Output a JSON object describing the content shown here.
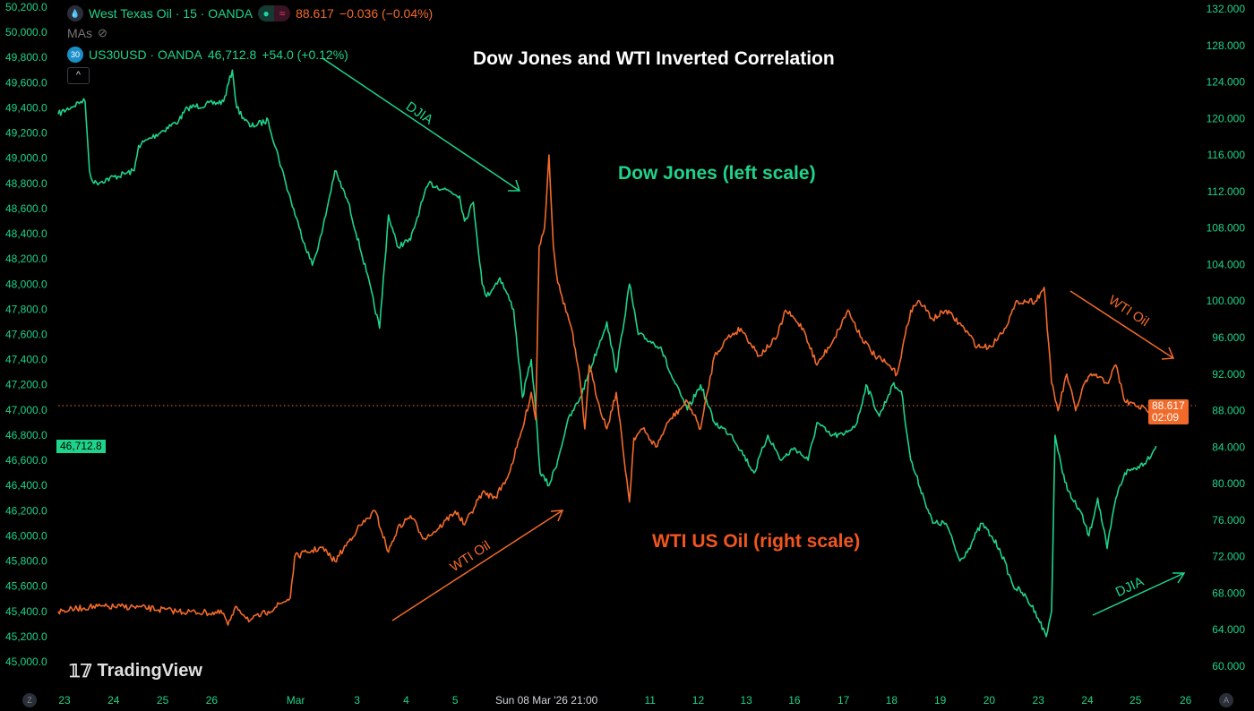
{
  "header": {
    "symbol1": "West Texas Oil · 15 · OANDA",
    "price1": "88.617",
    "change1": "−0.036 (−0.04%)",
    "mas_label": "MAs",
    "symbol2_badge": "30",
    "symbol2": "US30USD · OANDA",
    "price2": "46,712.8",
    "change2": "+54.0 (+0.12%)",
    "collapse": "^"
  },
  "colors": {
    "dow": "#1ed48a",
    "wti": "#f26a2a",
    "bg": "#000000"
  },
  "annotations": {
    "dow_label": "Dow Jones (left scale)",
    "wti_label": "WTI US Oil (right scale)",
    "arrow_djia_top": "DJIA",
    "arrow_wti_bottom": "WTI Oil",
    "arrow_wti_right": "WTI Oil",
    "arrow_djia_right": "DJIA"
  },
  "badges": {
    "wti_price": "88.617",
    "wti_timer": "02:09",
    "dow_price": "46,712.8"
  },
  "footer": {
    "logo": "TradingView",
    "z": "Z",
    "a": "A"
  },
  "chart_data": {
    "type": "line",
    "title": "Dow Jones and WTI Inverted Correlation",
    "x_unit": "trading days from Feb 23",
    "x_ticks": [
      {
        "x": 0,
        "label": "23"
      },
      {
        "x": 1,
        "label": "24"
      },
      {
        "x": 2,
        "label": "25"
      },
      {
        "x": 3,
        "label": "26"
      },
      {
        "x": 4.71,
        "label": "Mar"
      },
      {
        "x": 5.96,
        "label": "3"
      },
      {
        "x": 6.96,
        "label": "4"
      },
      {
        "x": 7.96,
        "label": "5"
      },
      {
        "x": 9.82,
        "label": "Sun 08 Mar '26  21:00",
        "crosshair": true
      },
      {
        "x": 11.93,
        "label": "11"
      },
      {
        "x": 12.91,
        "label": "12"
      },
      {
        "x": 13.89,
        "label": "13"
      },
      {
        "x": 14.87,
        "label": "16"
      },
      {
        "x": 15.87,
        "label": "17"
      },
      {
        "x": 16.85,
        "label": "18"
      },
      {
        "x": 17.84,
        "label": "19"
      },
      {
        "x": 18.84,
        "label": "20"
      },
      {
        "x": 19.84,
        "label": "23"
      },
      {
        "x": 20.84,
        "label": "24"
      },
      {
        "x": 21.82,
        "label": "25"
      },
      {
        "x": 22.84,
        "label": "26"
      }
    ],
    "left_axis": {
      "range": [
        45000,
        50200
      ],
      "ticks": [
        "50,200.0",
        "50,000.0",
        "49,800.0",
        "49,600.0",
        "49,400.0",
        "49,200.0",
        "49,000.0",
        "48,800.0",
        "48,600.0",
        "48,400.0",
        "48,200.0",
        "48,000.0",
        "47,800.0",
        "47,600.0",
        "47,400.0",
        "47,200.0",
        "47,000.0",
        "46,800.0",
        "46,600.0",
        "46,400.0",
        "46,200.0",
        "46,000.0",
        "45,800.0",
        "45,600.0",
        "45,400.0",
        "45,200.0",
        "45,000.0"
      ]
    },
    "right_axis": {
      "range": [
        60,
        132
      ],
      "ticks": [
        "132.000",
        "128.000",
        "124.000",
        "120.000",
        "116.000",
        "112.000",
        "108.000",
        "104.000",
        "100.000",
        "96.000",
        "92.000",
        "88.000",
        "84.000",
        "80.000",
        "76.000",
        "72.000",
        "68.000",
        "64.000",
        "60.000"
      ]
    },
    "series": [
      {
        "name": "US30USD (Dow Jones)",
        "axis": "left",
        "points": [
          [
            -0.13,
            49350
          ],
          [
            0.33,
            49450
          ],
          [
            0.42,
            49450
          ],
          [
            0.51,
            48900
          ],
          [
            0.6,
            48800
          ],
          [
            1.42,
            48900
          ],
          [
            1.51,
            49100
          ],
          [
            2.33,
            49300
          ],
          [
            2.51,
            49400
          ],
          [
            3.24,
            49450
          ],
          [
            3.42,
            49700
          ],
          [
            3.51,
            49400
          ],
          [
            3.78,
            49250
          ],
          [
            4.15,
            49300
          ],
          [
            4.51,
            48800
          ],
          [
            4.78,
            48450
          ],
          [
            5.05,
            48150
          ],
          [
            5.24,
            48400
          ],
          [
            5.51,
            48900
          ],
          [
            5.78,
            48650
          ],
          [
            6.15,
            48100
          ],
          [
            6.42,
            47650
          ],
          [
            6.6,
            48550
          ],
          [
            6.78,
            48300
          ],
          [
            7.05,
            48350
          ],
          [
            7.24,
            48600
          ],
          [
            7.42,
            48800
          ],
          [
            7.78,
            48750
          ],
          [
            8.05,
            48700
          ],
          [
            8.15,
            48500
          ],
          [
            8.33,
            48650
          ],
          [
            8.51,
            48000
          ],
          [
            8.6,
            47900
          ],
          [
            8.87,
            48050
          ],
          [
            9.15,
            47800
          ],
          [
            9.33,
            47100
          ],
          [
            9.51,
            47400
          ],
          [
            9.6,
            47000
          ],
          [
            9.69,
            46500
          ],
          [
            9.87,
            46400
          ],
          [
            10.05,
            46600
          ],
          [
            10.24,
            46900
          ],
          [
            10.51,
            47100
          ],
          [
            10.69,
            47300
          ],
          [
            11.05,
            47700
          ],
          [
            11.24,
            47300
          ],
          [
            11.51,
            48000
          ],
          [
            11.69,
            47600
          ],
          [
            12.15,
            47500
          ],
          [
            12.33,
            47300
          ],
          [
            12.69,
            47000
          ],
          [
            12.96,
            47200
          ],
          [
            13.24,
            46900
          ],
          [
            13.6,
            46800
          ],
          [
            14.05,
            46500
          ],
          [
            14.33,
            46800
          ],
          [
            14.6,
            46600
          ],
          [
            14.87,
            46700
          ],
          [
            15.15,
            46600
          ],
          [
            15.33,
            46900
          ],
          [
            15.6,
            46800
          ],
          [
            15.87,
            46800
          ],
          [
            16.15,
            46900
          ],
          [
            16.33,
            47200
          ],
          [
            16.6,
            46950
          ],
          [
            16.87,
            47200
          ],
          [
            17.05,
            47150
          ],
          [
            17.24,
            46600
          ],
          [
            17.51,
            46300
          ],
          [
            17.69,
            46100
          ],
          [
            17.96,
            46100
          ],
          [
            18.24,
            45800
          ],
          [
            18.42,
            45900
          ],
          [
            18.69,
            46100
          ],
          [
            18.87,
            46000
          ],
          [
            19.05,
            45900
          ],
          [
            19.33,
            45600
          ],
          [
            19.51,
            45550
          ],
          [
            19.78,
            45400
          ],
          [
            20,
            45200
          ],
          [
            20.11,
            45400
          ],
          [
            20.18,
            46800
          ],
          [
            20.33,
            46500
          ],
          [
            20.51,
            46300
          ],
          [
            20.69,
            46200
          ],
          [
            20.87,
            46000
          ],
          [
            21.05,
            46300
          ],
          [
            21.24,
            45900
          ],
          [
            21.42,
            46300
          ],
          [
            21.6,
            46500
          ],
          [
            21.87,
            46550
          ],
          [
            22.05,
            46600
          ],
          [
            22.24,
            46712.8
          ]
        ]
      },
      {
        "name": "West Texas Oil (WTI)",
        "axis": "right",
        "points": [
          [
            -0.13,
            66
          ],
          [
            0.51,
            66.5
          ],
          [
            1.42,
            66.5
          ],
          [
            2.33,
            66
          ],
          [
            3.24,
            65.8
          ],
          [
            3.33,
            64.5
          ],
          [
            3.51,
            66.5
          ],
          [
            3.78,
            65
          ],
          [
            4.15,
            66
          ],
          [
            4.6,
            67.5
          ],
          [
            4.69,
            72
          ],
          [
            4.96,
            72.5
          ],
          [
            5.24,
            73
          ],
          [
            5.51,
            71.5
          ],
          [
            5.96,
            75
          ],
          [
            6.33,
            77
          ],
          [
            6.6,
            72.5
          ],
          [
            6.78,
            75
          ],
          [
            7.05,
            76.5
          ],
          [
            7.33,
            74
          ],
          [
            7.6,
            75
          ],
          [
            7.96,
            77
          ],
          [
            8.15,
            75.5
          ],
          [
            8.51,
            79
          ],
          [
            8.78,
            78.5
          ],
          [
            9.05,
            81
          ],
          [
            9.33,
            86
          ],
          [
            9.51,
            90
          ],
          [
            9.6,
            87
          ],
          [
            9.67,
            106
          ],
          [
            9.78,
            108
          ],
          [
            9.87,
            116
          ],
          [
            9.96,
            106
          ],
          [
            10.05,
            102
          ],
          [
            10.33,
            97
          ],
          [
            10.51,
            91
          ],
          [
            10.6,
            86
          ],
          [
            10.69,
            93
          ],
          [
            10.87,
            89
          ],
          [
            11.05,
            86
          ],
          [
            11.24,
            90
          ],
          [
            11.51,
            78
          ],
          [
            11.6,
            85
          ],
          [
            11.78,
            86
          ],
          [
            12.05,
            84
          ],
          [
            12.33,
            87
          ],
          [
            12.69,
            89
          ],
          [
            12.96,
            86
          ],
          [
            13.24,
            94
          ],
          [
            13.51,
            96
          ],
          [
            13.78,
            97
          ],
          [
            14.15,
            94
          ],
          [
            14.51,
            96
          ],
          [
            14.69,
            99
          ],
          [
            15.05,
            97
          ],
          [
            15.33,
            93
          ],
          [
            15.69,
            96
          ],
          [
            15.96,
            99
          ],
          [
            16.24,
            96
          ],
          [
            16.51,
            94
          ],
          [
            16.78,
            93
          ],
          [
            16.96,
            92
          ],
          [
            17.24,
            99
          ],
          [
            17.42,
            100
          ],
          [
            17.69,
            98
          ],
          [
            17.96,
            99
          ],
          [
            18.33,
            97
          ],
          [
            18.6,
            95
          ],
          [
            18.87,
            95
          ],
          [
            19.15,
            97
          ],
          [
            19.42,
            100
          ],
          [
            19.78,
            100
          ],
          [
            19.96,
            101.5
          ],
          [
            20.11,
            91
          ],
          [
            20.24,
            88
          ],
          [
            20.42,
            92
          ],
          [
            20.6,
            88
          ],
          [
            20.78,
            91
          ],
          [
            20.96,
            92
          ],
          [
            21.24,
            91
          ],
          [
            21.42,
            93
          ],
          [
            21.6,
            89
          ],
          [
            21.87,
            88.5
          ],
          [
            22.05,
            88
          ],
          [
            22.24,
            88.617
          ]
        ]
      }
    ]
  }
}
